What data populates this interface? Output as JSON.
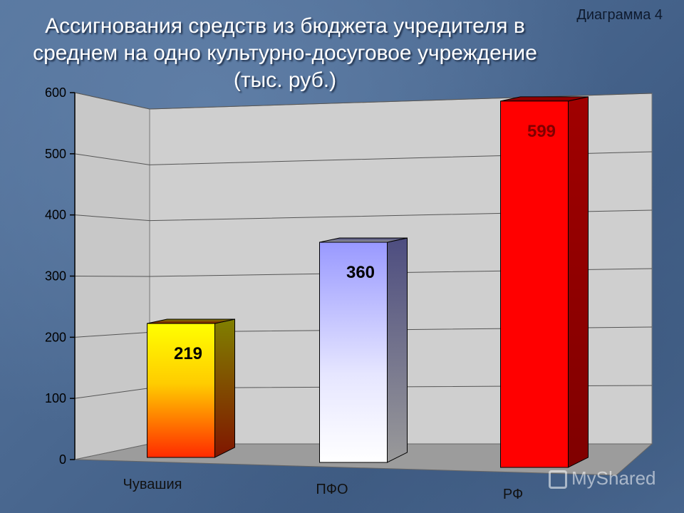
{
  "chart_data": {
    "type": "bar",
    "title": "Ассигнования средств из бюджета учредителя в среднем на одно культурно-досуговое учреждение (тыс. руб.)",
    "title_lines": [
      "Ассигнования средств из бюджета учредителя в",
      "среднем на одно культурно-досуговое учреждение",
      "(тыс. руб.)"
    ],
    "categories": [
      "Чувашия",
      "ПФО",
      "РФ"
    ],
    "values": [
      219,
      360,
      599
    ],
    "data_labels": [
      "219",
      "360",
      "599"
    ],
    "ylim": [
      0,
      600
    ],
    "yticks": [
      "0",
      "100",
      "200",
      "300",
      "400",
      "500",
      "600"
    ],
    "xlabel": "",
    "ylabel": "",
    "grid": true,
    "legend": "none",
    "bar_colors": [
      "#ffff00",
      "#9999ff",
      "#ff0000"
    ],
    "label_colors": [
      "#000000",
      "#000000",
      "#800000"
    ]
  },
  "diagram_label": "Диаграмма 4",
  "watermark": "MyShared"
}
